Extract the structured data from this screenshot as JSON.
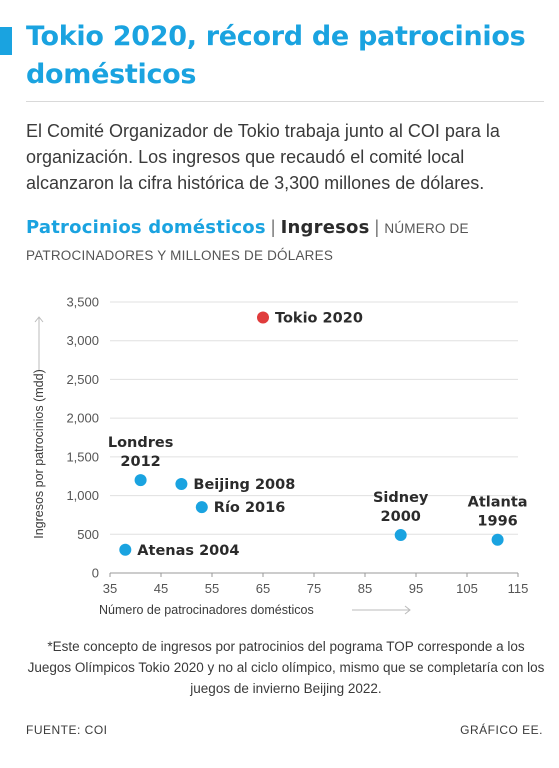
{
  "title": "Tokio 2020, récord de patrocinios domésticos",
  "lede": "El Comité Organizador de Tokio trabaja junto al COI para la organización. Los ingresos que recaudó el comité local alcanzaron la cifra histórica de 3,300 millones de dólares.",
  "subhead": {
    "part1": "Patrocinios domésticos",
    "part2": "Ingresos",
    "part3": "NÚMERO DE PATROCINADORES Y MILLONES DE DÓLARES"
  },
  "chart_data": {
    "type": "scatter",
    "xlabel": "Número de patrocinadores domésticos",
    "ylabel": "Ingresos por patrocinios (mdd)",
    "xlim": [
      35,
      115
    ],
    "ylim": [
      0,
      3500
    ],
    "x_ticks": [
      "35",
      "45",
      "55",
      "65",
      "75",
      "85",
      "95",
      "105",
      "115"
    ],
    "x_tick_values": [
      35,
      45,
      55,
      65,
      75,
      85,
      95,
      105,
      115
    ],
    "y_ticks": [
      "0",
      "500",
      "1,000",
      "1,500",
      "2,000",
      "2,500",
      "3,000",
      "3,500"
    ],
    "y_tick_values": [
      0,
      500,
      1000,
      1500,
      2000,
      2500,
      3000,
      3500
    ],
    "grid": "horizontal",
    "points": [
      {
        "label": [
          "Tokio 2020"
        ],
        "x": 65,
        "y": 3300,
        "color": "#e03c3c",
        "label_pos": "right"
      },
      {
        "label": [
          "Londres",
          "2012"
        ],
        "x": 41,
        "y": 1200,
        "color": "#1aa3e0",
        "label_pos": "above"
      },
      {
        "label": [
          "Beijing 2008"
        ],
        "x": 49,
        "y": 1150,
        "color": "#1aa3e0",
        "label_pos": "right"
      },
      {
        "label": [
          "Río 2016"
        ],
        "x": 53,
        "y": 850,
        "color": "#1aa3e0",
        "label_pos": "right"
      },
      {
        "label": [
          "Atenas 2004"
        ],
        "x": 38,
        "y": 300,
        "color": "#1aa3e0",
        "label_pos": "right"
      },
      {
        "label": [
          "Sidney",
          "2000"
        ],
        "x": 92,
        "y": 490,
        "color": "#1aa3e0",
        "label_pos": "above"
      },
      {
        "label": [
          "Atlanta",
          "1996"
        ],
        "x": 111,
        "y": 430,
        "color": "#1aa3e0",
        "label_pos": "above"
      }
    ]
  },
  "footnote": "*Este concepto de ingresos por patrocinios del pograma TOP corresponde a los Juegos Olímpicos Tokio 2020 y no al ciclo olímpico, mismo que se completaría con los juegos de invierno Beijing 2022.",
  "source": "FUENTE: COI",
  "credit": "GRÁFICO EE."
}
